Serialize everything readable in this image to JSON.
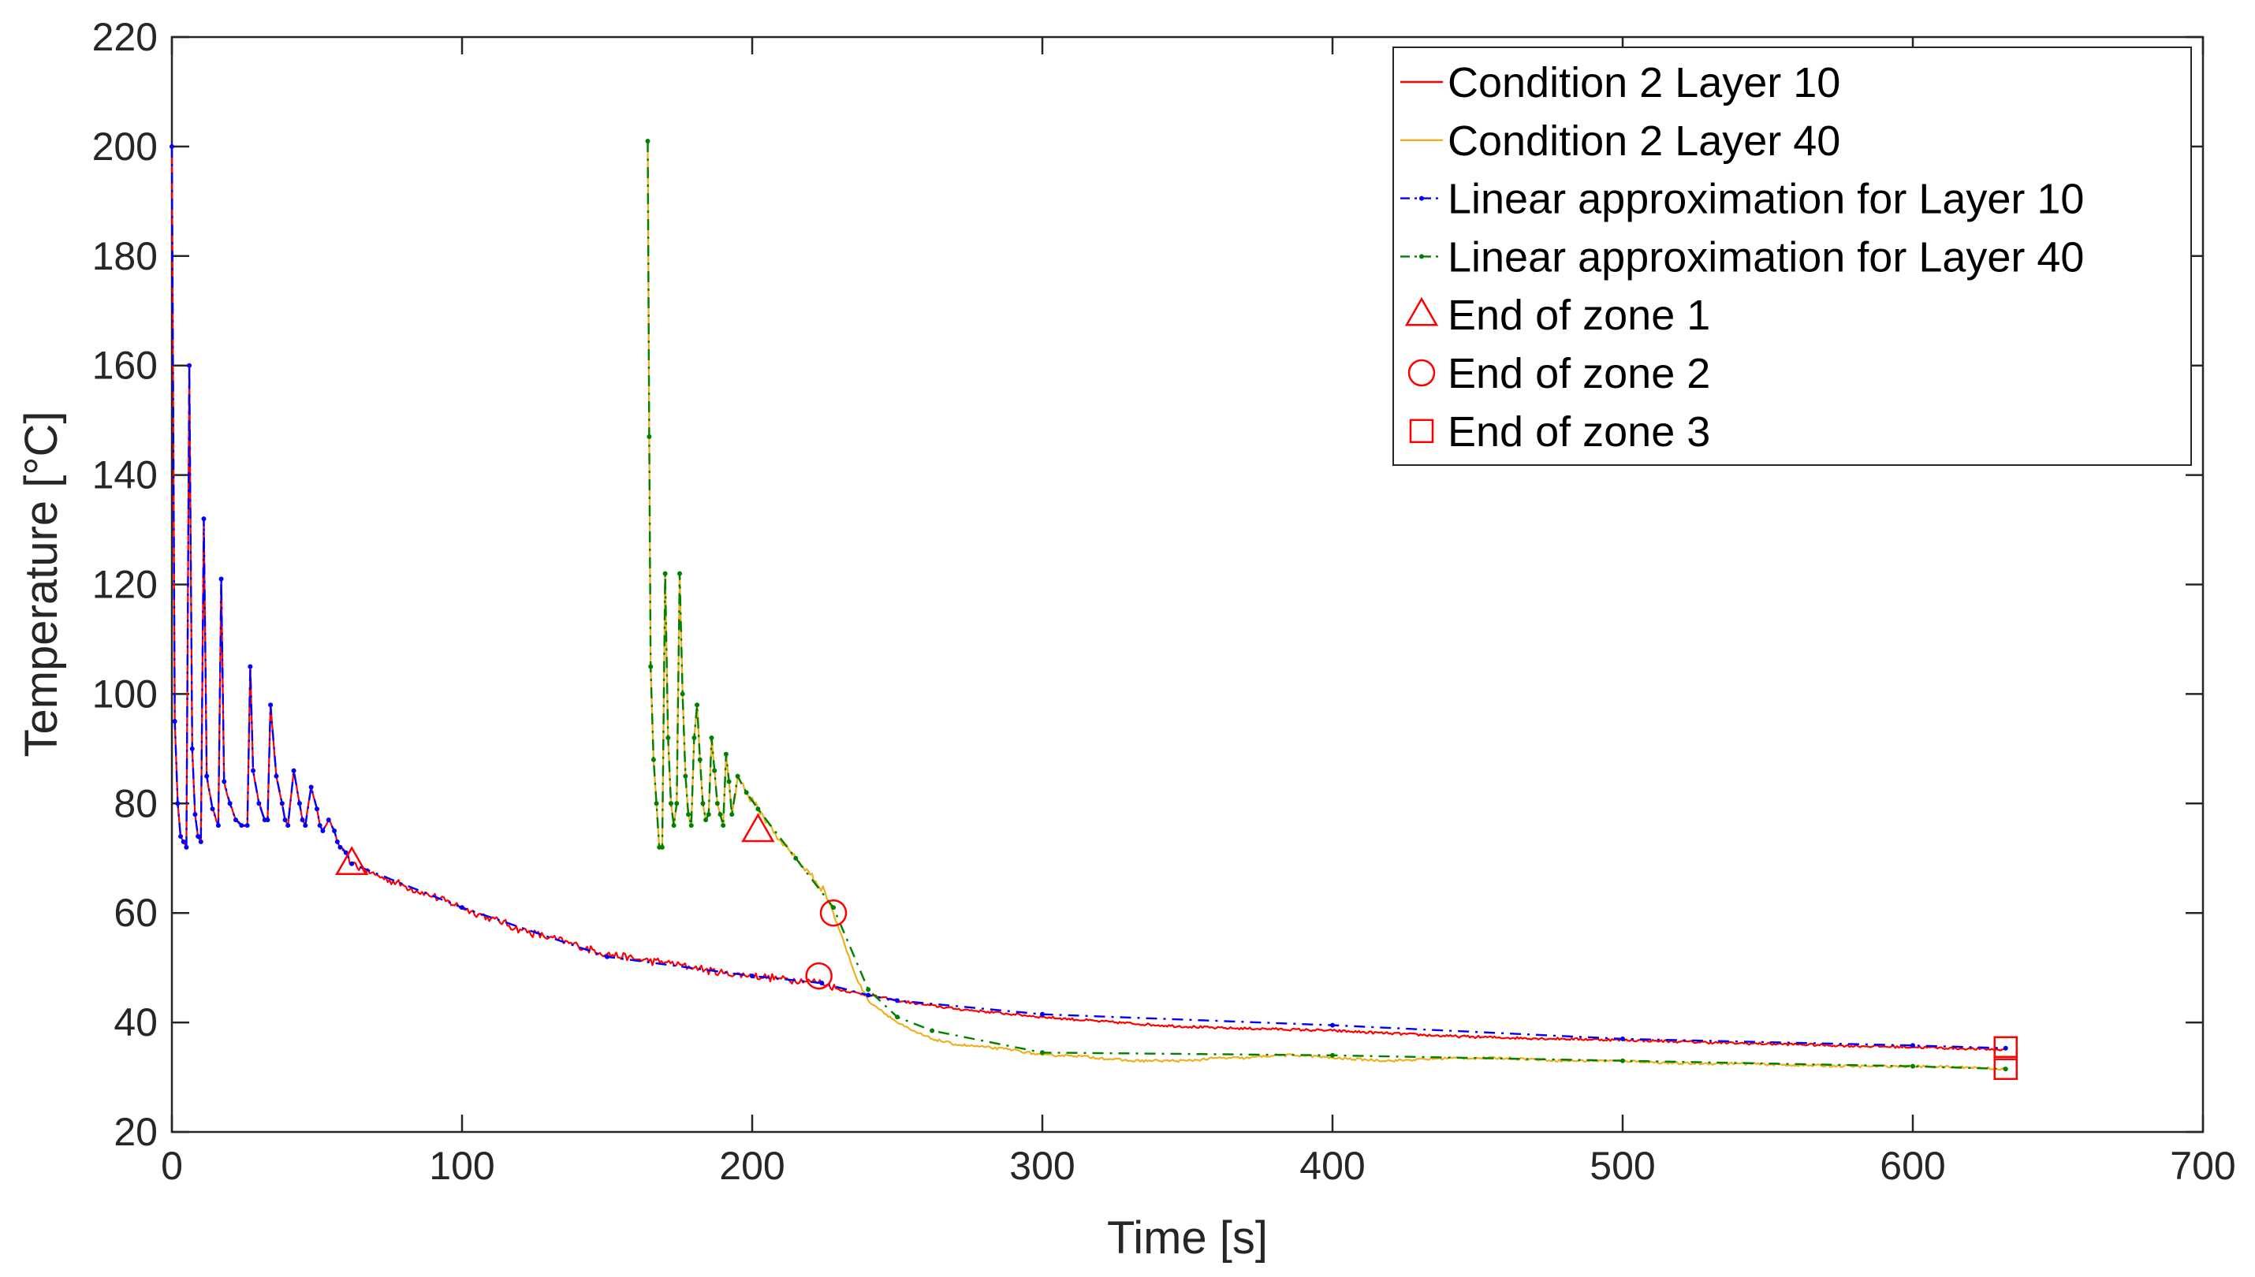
{
  "chart_data": {
    "type": "line",
    "title": "",
    "xlabel": "Time [s]",
    "ylabel": "Temperature [°C]",
    "xlim": [
      0,
      700
    ],
    "ylim": [
      20,
      220
    ],
    "xticks": [
      0,
      100,
      200,
      300,
      400,
      500,
      600,
      700
    ],
    "yticks": [
      20,
      40,
      60,
      80,
      100,
      120,
      140,
      160,
      180,
      200,
      220
    ],
    "grid": false,
    "legend_position": "top-right",
    "series": [
      {
        "name": "Condition 2 Layer 10",
        "color": "#ff0000",
        "style": "solid",
        "noisy": true,
        "x": [
          0,
          1,
          2,
          3,
          4,
          5,
          6,
          7,
          8,
          9,
          10,
          11,
          12,
          14,
          16,
          17,
          18,
          20,
          22,
          24,
          26,
          27,
          28,
          30,
          32,
          33,
          34,
          36,
          38,
          39,
          40,
          42,
          44,
          45,
          46,
          48,
          50,
          51,
          52,
          54,
          56,
          57,
          58,
          60,
          62,
          70,
          80,
          90,
          100,
          110,
          120,
          130,
          140,
          150,
          160,
          170,
          180,
          190,
          200,
          210,
          220,
          224,
          230,
          240,
          250,
          260,
          270,
          280,
          290,
          300,
          320,
          340,
          360,
          380,
          400,
          420,
          440,
          460,
          480,
          500,
          520,
          540,
          560,
          580,
          600,
          620,
          632
        ],
        "y": [
          200,
          95,
          80,
          74,
          73,
          72,
          160,
          90,
          78,
          74,
          73,
          132,
          85,
          79,
          76,
          121,
          84,
          80,
          77,
          76,
          76,
          105,
          86,
          80,
          77,
          77,
          98,
          85,
          80,
          77,
          76,
          86,
          80,
          77,
          76,
          83,
          79,
          76,
          75,
          77,
          75,
          73,
          72,
          71,
          69,
          67,
          65,
          63,
          61,
          59,
          57,
          55.5,
          54,
          52.5,
          51.5,
          51,
          50,
          49,
          48.5,
          48,
          47.5,
          47.2,
          46,
          45,
          44,
          43.2,
          42.5,
          42,
          41.5,
          41,
          40.2,
          39.5,
          39,
          38.8,
          38.5,
          38,
          37.5,
          37.2,
          37,
          36.8,
          36.5,
          36.2,
          36,
          35.7,
          35.5,
          35.2,
          35
        ]
      },
      {
        "name": "Condition 2 Layer 40",
        "color": "#edb120",
        "style": "solid",
        "noisy": true,
        "x": [
          164,
          164.5,
          165,
          166,
          167,
          168,
          169,
          170,
          171,
          172,
          173,
          174,
          175,
          176,
          177,
          178,
          179,
          180,
          181,
          182,
          183,
          184,
          185,
          186,
          187,
          188,
          189,
          190,
          191,
          192,
          193,
          195,
          198,
          202,
          206,
          210,
          215,
          220,
          225,
          228,
          232,
          236,
          240,
          245,
          250,
          255,
          262,
          270,
          280,
          290,
          300,
          310,
          320,
          330,
          340,
          350,
          360,
          370,
          380,
          390,
          400,
          420,
          440,
          460,
          480,
          500,
          520,
          540,
          560,
          580,
          600,
          620,
          632
        ],
        "y": [
          201,
          147,
          105,
          88,
          80,
          72,
          72,
          122,
          92,
          80,
          76,
          80,
          122,
          100,
          85,
          78,
          76,
          92,
          98,
          88,
          80,
          77,
          78,
          92,
          86,
          80,
          78,
          76,
          89,
          84,
          78,
          85,
          82,
          79,
          76,
          73,
          70,
          67,
          64,
          60,
          54,
          48,
          44,
          42,
          40,
          38.5,
          37,
          36,
          35.5,
          35,
          34,
          34,
          33.5,
          33,
          33,
          33,
          33.5,
          33.5,
          34,
          34,
          33.5,
          33,
          33.5,
          33.5,
          33,
          33,
          32.5,
          32.5,
          32.2,
          32,
          32,
          31.8,
          31.5
        ]
      },
      {
        "name": "Linear approximation for Layer 10",
        "color": "#0000ff",
        "style": "dash-dot",
        "noisy": false,
        "x": [
          0,
          1,
          2,
          3,
          4,
          5,
          6,
          7,
          8,
          9,
          10,
          11,
          12,
          14,
          16,
          17,
          18,
          20,
          22,
          24,
          26,
          27,
          28,
          30,
          32,
          33,
          34,
          36,
          38,
          39,
          40,
          42,
          44,
          45,
          46,
          48,
          50,
          51,
          52,
          54,
          56,
          57,
          58,
          60,
          62,
          100,
          150,
          200,
          224,
          240,
          250,
          300,
          400,
          500,
          600,
          632
        ],
        "y": [
          200,
          95,
          80,
          74,
          73,
          72,
          160,
          90,
          78,
          74,
          73,
          132,
          85,
          79,
          76,
          121,
          84,
          80,
          77,
          76,
          76,
          105,
          86,
          80,
          77,
          77,
          98,
          85,
          80,
          77,
          76,
          86,
          80,
          77,
          76,
          83,
          79,
          76,
          75,
          77,
          75,
          73,
          72,
          71,
          69,
          61,
          52,
          48.5,
          47.2,
          45,
          44,
          41.5,
          39.5,
          37,
          35.8,
          35.3
        ]
      },
      {
        "name": "Linear approximation for Layer 40",
        "color": "#008000",
        "style": "dash-dot",
        "noisy": false,
        "x": [
          164,
          164.5,
          165,
          166,
          167,
          168,
          169,
          170,
          171,
          172,
          173,
          174,
          175,
          176,
          177,
          178,
          179,
          180,
          181,
          182,
          183,
          184,
          185,
          186,
          187,
          188,
          189,
          190,
          191,
          192,
          193,
          195,
          198,
          202,
          215,
          228,
          240,
          250,
          262,
          300,
          400,
          500,
          600,
          632
        ],
        "y": [
          201,
          147,
          105,
          88,
          80,
          72,
          72,
          122,
          92,
          80,
          76,
          80,
          122,
          100,
          85,
          78,
          76,
          92,
          98,
          88,
          80,
          77,
          78,
          92,
          86,
          80,
          78,
          76,
          89,
          84,
          78,
          85,
          82,
          79,
          70,
          61,
          46,
          41,
          38.5,
          34.5,
          34,
          33,
          32,
          31.5
        ]
      }
    ],
    "markers": [
      {
        "name": "End of zone 1",
        "shape": "triangle",
        "color": "#ff0000",
        "points": [
          [
            62,
            69
          ],
          [
            202,
            75
          ]
        ]
      },
      {
        "name": "End of zone 2",
        "shape": "circle",
        "color": "#ff0000",
        "points": [
          [
            223,
            48.5
          ],
          [
            228,
            60
          ]
        ]
      },
      {
        "name": "End of zone 3",
        "shape": "square",
        "color": "#ff0000",
        "points": [
          [
            632,
            35.3
          ],
          [
            632,
            31.7
          ]
        ]
      }
    ],
    "legend": [
      {
        "label": "Condition 2 Layer 10",
        "kind": "line",
        "color": "#ff0000"
      },
      {
        "label": "Condition 2 Layer 40",
        "kind": "line",
        "color": "#edb120"
      },
      {
        "label": "Linear approximation for Layer 10",
        "kind": "dashline",
        "color": "#0000ff"
      },
      {
        "label": "Linear approximation for Layer 40",
        "kind": "dashline",
        "color": "#008000"
      },
      {
        "label": "End of zone 1",
        "kind": "triangle",
        "color": "#ff0000"
      },
      {
        "label": "End of zone 2",
        "kind": "circle",
        "color": "#ff0000"
      },
      {
        "label": "End of zone 3",
        "kind": "square",
        "color": "#ff0000"
      }
    ]
  }
}
